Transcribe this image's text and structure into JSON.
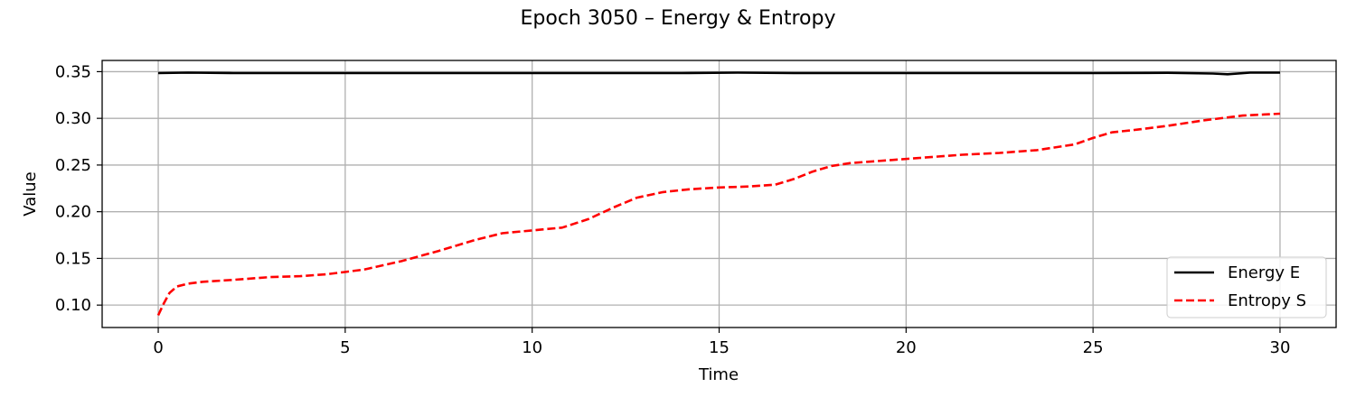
{
  "chart_data": {
    "type": "line",
    "title": "Epoch 3050 – Energy & Entropy",
    "xlabel": "Time",
    "ylabel": "Value",
    "xlim": [
      -1.5,
      31.5
    ],
    "ylim": [
      0.076,
      0.362
    ],
    "xticks": [
      0,
      5,
      10,
      15,
      20,
      25,
      30
    ],
    "yticks": [
      0.1,
      0.15,
      0.2,
      0.25,
      0.3,
      0.35
    ],
    "grid": true,
    "legend_position": "lower-right",
    "series": [
      {
        "name": "Energy E",
        "color": "#000000",
        "style": "solid",
        "x": [
          0,
          0.8,
          2,
          4,
          6,
          8,
          10,
          12,
          14,
          15.5,
          17,
          19,
          21,
          23,
          25,
          27,
          28.2,
          28.6,
          29.2,
          30
        ],
        "y": [
          0.3485,
          0.349,
          0.3485,
          0.3485,
          0.3485,
          0.3485,
          0.3485,
          0.3485,
          0.3485,
          0.349,
          0.3485,
          0.3485,
          0.3485,
          0.3485,
          0.3485,
          0.3488,
          0.348,
          0.3472,
          0.349,
          0.349
        ]
      },
      {
        "name": "Entropy S",
        "color": "#ff0000",
        "style": "dashed",
        "x": [
          0,
          0.15,
          0.3,
          0.5,
          0.8,
          1.2,
          2,
          3,
          3.8,
          4.5,
          5.5,
          6.5,
          7.5,
          8.5,
          9.2,
          10,
          10.8,
          11.5,
          12.2,
          12.8,
          13.5,
          14.2,
          15,
          15.8,
          16.5,
          17,
          17.5,
          18,
          18.5,
          19.5,
          20.5,
          21.5,
          22.5,
          23.5,
          24.5,
          25,
          25.5,
          26.2,
          27,
          28,
          29,
          30
        ],
        "y": [
          0.089,
          0.102,
          0.113,
          0.12,
          0.123,
          0.125,
          0.127,
          0.13,
          0.131,
          0.133,
          0.138,
          0.147,
          0.158,
          0.17,
          0.177,
          0.18,
          0.183,
          0.192,
          0.205,
          0.215,
          0.221,
          0.224,
          0.226,
          0.227,
          0.229,
          0.235,
          0.243,
          0.249,
          0.252,
          0.255,
          0.258,
          0.261,
          0.263,
          0.266,
          0.272,
          0.279,
          0.285,
          0.288,
          0.292,
          0.298,
          0.303,
          0.305
        ]
      }
    ]
  }
}
